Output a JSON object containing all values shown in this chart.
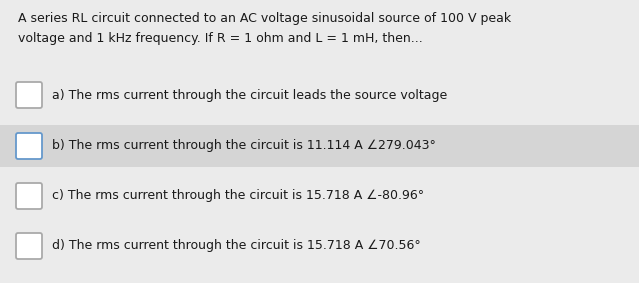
{
  "background_color": "#ebebeb",
  "question_text_line1": "A series RL circuit connected to an AC voltage sinusoidal source of 100 V peak",
  "question_text_line2": "voltage and 1 kHz frequency. If R = 1 ohm and L = 1 mH, then...",
  "options": [
    {
      "label": "a)",
      "text": "The rms current through the circuit leads the source voltage",
      "highlighted": false,
      "checkbox_color": "#aaaaaa"
    },
    {
      "label": "b)",
      "text": "The rms current through the circuit is 11.114 A ∠279.043°",
      "highlighted": true,
      "checkbox_color": "#6699cc"
    },
    {
      "label": "c)",
      "text": "The rms current through the circuit is 15.718 A ∠-80.96°",
      "highlighted": false,
      "checkbox_color": "#aaaaaa"
    },
    {
      "label": "d)",
      "text": "The rms current through the circuit is 15.718 A ∠70.56°",
      "highlighted": false,
      "checkbox_color": "#aaaaaa"
    }
  ],
  "highlight_color": "#d5d5d5",
  "text_color": "#1a1a1a",
  "question_fontsize": 9.0,
  "option_fontsize": 9.0
}
